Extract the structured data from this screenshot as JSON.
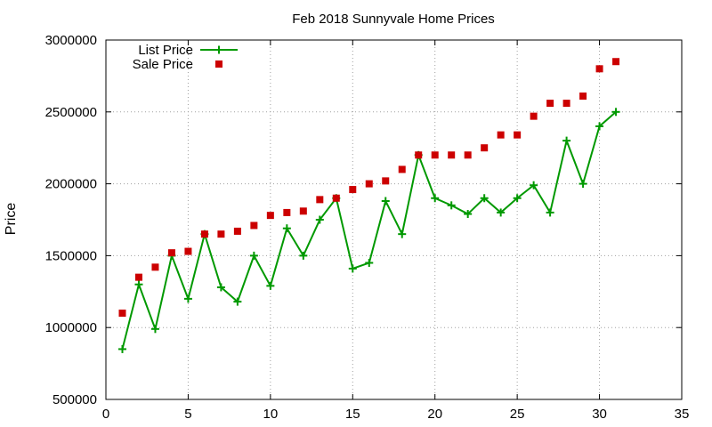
{
  "chart_data": {
    "type": "line",
    "title": "Feb 2018 Sunnyvale Home Prices",
    "xlabel": "",
    "ylabel": "Price",
    "xlim": [
      0,
      35
    ],
    "ylim": [
      500000,
      3000000
    ],
    "xticks": [
      0,
      5,
      10,
      15,
      20,
      25,
      30,
      35
    ],
    "yticks": [
      500000,
      1000000,
      1500000,
      2000000,
      2500000,
      3000000
    ],
    "grid": true,
    "legend": "top-left",
    "series": [
      {
        "name": "List Price",
        "style": "line-with-plus-markers",
        "color": "#009900",
        "x": [
          1,
          2,
          3,
          4,
          5,
          6,
          7,
          8,
          9,
          10,
          11,
          12,
          13,
          14,
          15,
          16,
          17,
          18,
          19,
          20,
          21,
          22,
          23,
          24,
          25,
          26,
          27,
          28,
          29,
          30,
          31
        ],
        "values": [
          850000,
          1300000,
          990000,
          1500000,
          1200000,
          1650000,
          1280000,
          1180000,
          1500000,
          1290000,
          1690000,
          1500000,
          1750000,
          1900000,
          1410000,
          1450000,
          1880000,
          1650000,
          2200000,
          1900000,
          1850000,
          1790000,
          1900000,
          1800000,
          1900000,
          1990000,
          1800000,
          2300000,
          2000000,
          2400000,
          2500000
        ]
      },
      {
        "name": "Sale Price",
        "style": "square-markers",
        "color": "#cc0000",
        "x": [
          1,
          2,
          3,
          4,
          5,
          6,
          7,
          8,
          9,
          10,
          11,
          12,
          13,
          14,
          15,
          16,
          17,
          18,
          19,
          20,
          21,
          22,
          23,
          24,
          25,
          26,
          27,
          28,
          29,
          30,
          31
        ],
        "values": [
          1100000,
          1350000,
          1420000,
          1520000,
          1530000,
          1650000,
          1650000,
          1670000,
          1710000,
          1780000,
          1800000,
          1810000,
          1890000,
          1900000,
          1960000,
          2000000,
          2020000,
          2100000,
          2200000,
          2200000,
          2200000,
          2200000,
          2250000,
          2340000,
          2340000,
          2470000,
          2560000,
          2560000,
          2610000,
          2800000,
          2850000
        ]
      }
    ]
  }
}
